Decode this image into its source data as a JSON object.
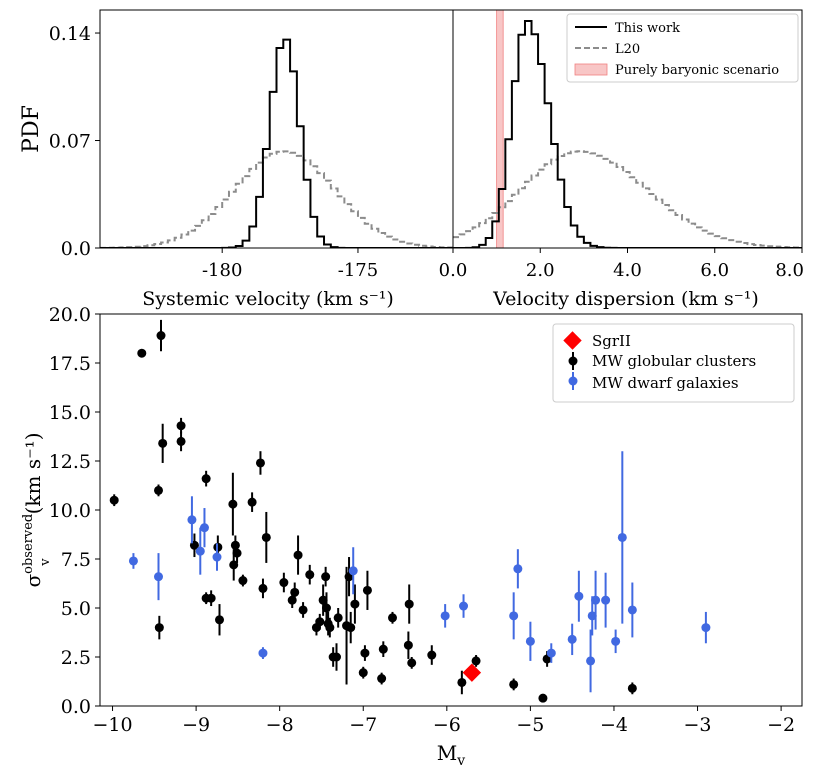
{
  "colors": {
    "this_work": "#000000",
    "l20": "#8c8c8c",
    "baryonic": "#f08080",
    "sgr2": "#ff0000",
    "globular": "#000000",
    "dwarf": "#4169e1"
  },
  "chart_data": [
    {
      "type": "histogram",
      "panel": "top-left",
      "xlabel": "Systemic velocity (km s⁻¹)",
      "ylabel": "PDF",
      "xlim": [
        -184.5,
        -171.5
      ],
      "ylim": [
        0,
        0.155
      ],
      "xticks": [
        -180,
        -175
      ],
      "xtick_labels": [
        "-180",
        "-175"
      ],
      "yticks": [
        0.0,
        0.07,
        0.14
      ],
      "ytick_labels": [
        "0.0",
        "0.07",
        "0.14"
      ],
      "series": [
        {
          "name": "This work",
          "style": "solid",
          "center": -177.7,
          "sigma": 0.55,
          "peak": 0.137,
          "bin_width": 0.25
        },
        {
          "name": "L20",
          "style": "dashed",
          "center": -177.7,
          "sigma": 1.85,
          "peak": 0.063,
          "bin_width": 0.25
        }
      ]
    },
    {
      "type": "histogram",
      "panel": "top-right",
      "xlabel": "Velocity dispersion (km s⁻¹)",
      "xlim": [
        0.0,
        8.0
      ],
      "ylim": [
        0,
        0.155
      ],
      "xticks": [
        0.0,
        2.0,
        4.0,
        6.0,
        8.0
      ],
      "xtick_labels": [
        "0.0",
        "2.0",
        "4.0",
        "6.0",
        "8.0"
      ],
      "legend_position": "top-right",
      "legend": [
        "This work",
        "L20",
        "Purely baryonic scenario"
      ],
      "band": {
        "name": "Purely baryonic scenario",
        "x0": 1.0,
        "x1": 1.15
      },
      "series": [
        {
          "name": "This work",
          "style": "solid",
          "mode": 1.7,
          "sigma_left": 0.35,
          "sigma_right": 0.5,
          "peak": 0.148,
          "bin_width": 0.15
        },
        {
          "name": "L20",
          "style": "dashed",
          "mode": 2.9,
          "sigma_left": 1.35,
          "sigma_right": 1.55,
          "peak": 0.063,
          "bin_width": 0.15
        }
      ]
    },
    {
      "type": "scatter",
      "panel": "bottom",
      "xlabel": "M",
      "xlabel_sub": "v",
      "ylabel": "σ",
      "ylabel_sub": "v",
      "ylabel_sup": "observed",
      "ylabel_unit": "(km s⁻¹)",
      "xlim": [
        -10.15,
        -1.75
      ],
      "ylim": [
        0,
        20
      ],
      "xticks": [
        -10,
        -9,
        -8,
        -7,
        -6,
        -5,
        -4,
        -3,
        -2
      ],
      "xtick_labels": [
        "−10",
        "−9",
        "−8",
        "−7",
        "−6",
        "−5",
        "−4",
        "−3",
        "−2"
      ],
      "yticks": [
        0.0,
        2.5,
        5.0,
        7.5,
        10.0,
        12.5,
        15.0,
        17.5,
        20.0
      ],
      "ytick_labels": [
        "0.0",
        "2.5",
        "5.0",
        "7.5",
        "10.0",
        "12.5",
        "15.0",
        "17.5",
        "20.0"
      ],
      "legend_position": "top-right",
      "legend": [
        "SgrII",
        "MW globular clusters",
        "MW dwarf galaxies"
      ],
      "sgr2": {
        "name": "SgrII",
        "x": -5.7,
        "y": 1.7
      },
      "globular_clusters": [
        [
          -9.98,
          10.5,
          0.3
        ],
        [
          -9.65,
          18.0,
          0.2
        ],
        [
          -9.42,
          18.9,
          0.8
        ],
        [
          -9.45,
          11.0,
          0.3
        ],
        [
          -9.4,
          13.4,
          1.0
        ],
        [
          -9.44,
          4.0,
          0.6
        ],
        [
          -9.18,
          14.3,
          0.4
        ],
        [
          -9.18,
          13.5,
          0.5
        ],
        [
          -9.02,
          8.2,
          0.6
        ],
        [
          -8.88,
          11.6,
          0.4
        ],
        [
          -8.88,
          5.5,
          0.3
        ],
        [
          -8.82,
          5.5,
          0.4
        ],
        [
          -8.74,
          8.1,
          0.6
        ],
        [
          -8.72,
          4.4,
          0.8
        ],
        [
          -8.56,
          10.3,
          1.6
        ],
        [
          -8.53,
          8.2,
          0.5
        ],
        [
          -8.55,
          7.2,
          0.8
        ],
        [
          -8.51,
          7.8,
          0.5
        ],
        [
          -8.44,
          6.4,
          0.3
        ],
        [
          -8.33,
          10.4,
          0.5
        ],
        [
          -8.23,
          12.4,
          0.6
        ],
        [
          -8.2,
          6.0,
          0.5
        ],
        [
          -8.16,
          8.6,
          1.3
        ],
        [
          -7.95,
          6.3,
          0.5
        ],
        [
          -7.85,
          5.4,
          0.4
        ],
        [
          -7.82,
          5.8,
          0.5
        ],
        [
          -7.78,
          7.7,
          1.0
        ],
        [
          -7.72,
          4.9,
          0.4
        ],
        [
          -7.64,
          6.7,
          0.5
        ],
        [
          -7.56,
          4.0,
          0.4
        ],
        [
          -7.52,
          4.3,
          0.4
        ],
        [
          -7.48,
          5.4,
          0.8
        ],
        [
          -7.45,
          6.6,
          0.5
        ],
        [
          -7.44,
          5.0,
          0.8
        ],
        [
          -7.42,
          4.2,
          0.6
        ],
        [
          -7.4,
          4.0,
          0.5
        ],
        [
          -7.36,
          2.5,
          0.5
        ],
        [
          -7.32,
          2.5,
          0.7
        ],
        [
          -7.3,
          4.5,
          0.5
        ],
        [
          -7.2,
          4.1,
          3.0
        ],
        [
          -7.17,
          6.6,
          1.0
        ],
        [
          -7.15,
          4.0,
          0.8
        ],
        [
          -7.1,
          5.2,
          1.0
        ],
        [
          -7.0,
          1.7,
          0.3
        ],
        [
          -6.98,
          2.7,
          0.4
        ],
        [
          -6.95,
          5.9,
          1.0
        ],
        [
          -6.78,
          1.4,
          0.3
        ],
        [
          -6.76,
          2.9,
          0.4
        ],
        [
          -6.65,
          4.5,
          0.3
        ],
        [
          -6.46,
          3.1,
          0.7
        ],
        [
          -6.45,
          5.2,
          1.0
        ],
        [
          -6.42,
          2.2,
          0.3
        ],
        [
          -6.18,
          2.6,
          0.5
        ],
        [
          -5.82,
          1.2,
          0.6
        ],
        [
          -5.65,
          2.3,
          0.3
        ],
        [
          -5.2,
          1.1,
          0.3
        ],
        [
          -4.85,
          0.4,
          0.2
        ],
        [
          -4.8,
          2.4,
          0.4
        ],
        [
          -3.78,
          0.9,
          0.3
        ]
      ],
      "dwarf_galaxies": [
        [
          -9.75,
          7.4,
          0.4
        ],
        [
          -9.45,
          6.6,
          1.2
        ],
        [
          -9.05,
          9.5,
          1.2
        ],
        [
          -8.95,
          7.9,
          1.2
        ],
        [
          -8.9,
          9.1,
          1.0
        ],
        [
          -8.75,
          7.6,
          0.7
        ],
        [
          -8.2,
          2.7,
          0.3
        ],
        [
          -7.12,
          6.9,
          1.2
        ],
        [
          -6.02,
          4.6,
          0.6
        ],
        [
          -5.8,
          5.1,
          0.6
        ],
        [
          -5.2,
          4.6,
          1.2
        ],
        [
          -5.15,
          7.0,
          1.0
        ],
        [
          -5.0,
          3.3,
          1.0
        ],
        [
          -4.75,
          2.7,
          0.5
        ],
        [
          -4.5,
          3.4,
          0.8
        ],
        [
          -4.42,
          5.6,
          1.3
        ],
        [
          -4.28,
          2.3,
          1.6
        ],
        [
          -4.26,
          4.6,
          1.0
        ],
        [
          -4.22,
          5.4,
          1.5
        ],
        [
          -4.1,
          5.4,
          1.4
        ],
        [
          -3.98,
          3.3,
          0.6
        ],
        [
          -3.9,
          8.6,
          4.4
        ],
        [
          -3.78,
          4.9,
          1.4
        ],
        [
          -2.9,
          4.0,
          0.8
        ]
      ]
    }
  ]
}
